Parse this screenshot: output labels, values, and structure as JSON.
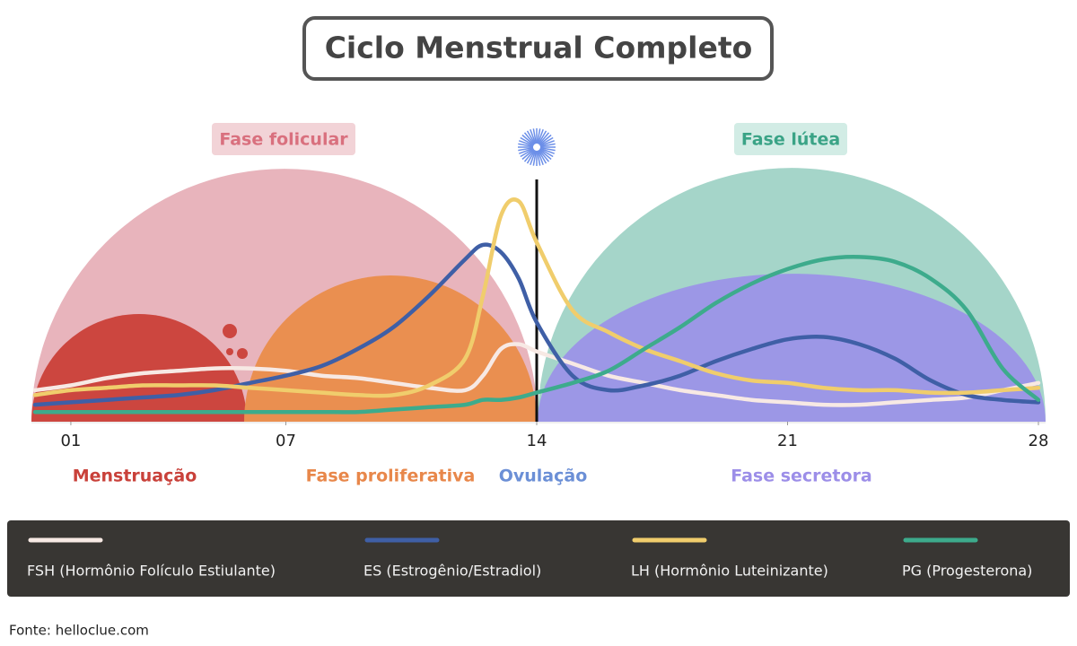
{
  "chart_data": {
    "type": "line",
    "title": "Ciclo Menstrual Completo",
    "phases_top": [
      "Fase folicular",
      "Fase lútea"
    ],
    "phases_bottom": [
      "Menstruação",
      "Fase proliferativa",
      "Ovulação",
      "Fase secretora"
    ],
    "source": "Fonte: helloclue.com",
    "xlim": [
      0,
      28
    ],
    "ylim": [
      0,
      100
    ],
    "xticks": [
      {
        "value": 1,
        "label": "01"
      },
      {
        "value": 7,
        "label": "07"
      },
      14,
      21,
      28
    ],
    "x": [
      0,
      1,
      2,
      3,
      4,
      5,
      6,
      7,
      8,
      9,
      10,
      11,
      12,
      12.5,
      13,
      13.5,
      14,
      15,
      16,
      17,
      18,
      19,
      20,
      21,
      22,
      23,
      24,
      25,
      26,
      27,
      28
    ],
    "series": [
      {
        "name": "FSH (Hormônio Folículo Estiulante)",
        "color": "#f7e9e4",
        "values": [
          13,
          15,
          18,
          20,
          21,
          22,
          22,
          21,
          19,
          18,
          16,
          14,
          13,
          19,
          30,
          32,
          29,
          24,
          19,
          16,
          13,
          11,
          9,
          8,
          7,
          7,
          8,
          9,
          10,
          13,
          16
        ]
      },
      {
        "name": "ES (Estrogênio/Estradiol)",
        "color": "#3f5fa6",
        "values": [
          7,
          8,
          9,
          10,
          11,
          13,
          16,
          19,
          23,
          30,
          39,
          52,
          67,
          73,
          70,
          59,
          41,
          19,
          13,
          15,
          19,
          25,
          30,
          34,
          35,
          32,
          26,
          17,
          11,
          9,
          8
        ]
      },
      {
        "name": "LH (Hormônio Luteinizante)",
        "color": "#f0cd6c",
        "values": [
          11,
          13,
          14,
          15,
          15,
          15,
          14,
          13,
          12,
          11,
          11,
          15,
          26,
          52,
          85,
          91,
          74,
          46,
          37,
          30,
          25,
          20,
          17,
          16,
          14,
          13,
          13,
          12,
          12,
          13,
          14
        ]
      },
      {
        "name": "PG (Progesterona)",
        "color": "#3dab8c",
        "values": [
          4,
          4,
          4,
          4,
          4,
          4,
          4,
          4,
          4,
          4,
          5,
          6,
          7,
          9,
          9,
          10,
          12,
          16,
          21,
          30,
          39,
          49,
          57,
          63,
          67,
          68,
          66,
          59,
          46,
          22,
          9
        ]
      }
    ]
  }
}
